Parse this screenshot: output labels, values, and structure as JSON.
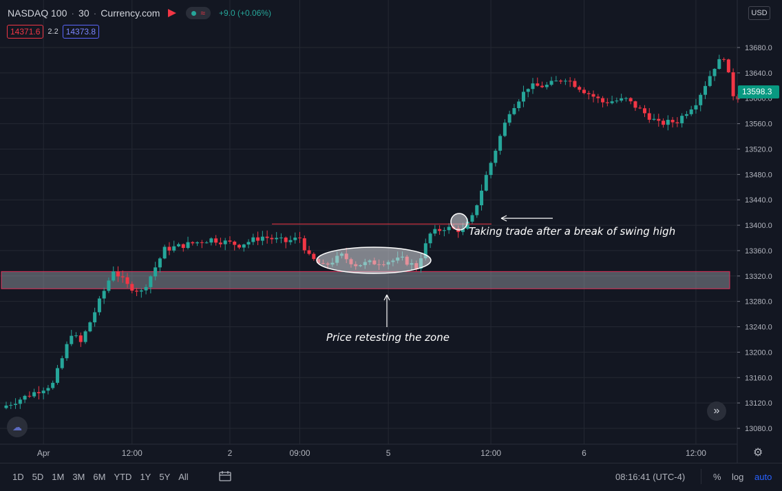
{
  "legend": {
    "symbol": "NASDAQ 100",
    "interval": "30",
    "source": "Currency.com",
    "change": "+9.0 (+0.06%)"
  },
  "ohlc": {
    "bid": "14371.6",
    "spread": "2.2",
    "ask": "14373.8"
  },
  "currency": "USD",
  "last_price_label": "13598.3",
  "colors": {
    "up": "#26a69a",
    "down": "#f23645",
    "background": "#131722",
    "grid": "#242833",
    "zone": "#a0a4ae",
    "zone_border": "#e0315a",
    "accent": "#2962ff"
  },
  "icons": {
    "logo": "cloud-logo-icon",
    "goto": "scroll-to-realtime-icon",
    "settings": "gear-icon",
    "calendar": "date-range-icon"
  },
  "toolbar": {
    "ranges": [
      "1D",
      "5D",
      "1M",
      "3M",
      "6M",
      "YTD",
      "1Y",
      "5Y",
      "All"
    ],
    "time": "08:16:41 (UTC-4)",
    "percent": "%",
    "log": "log",
    "auto": "auto"
  },
  "chart_data": {
    "type": "candlestick",
    "title": "",
    "ylim": [
      13060,
      13700
    ],
    "y_ticks": [
      13080,
      13120,
      13160,
      13200,
      13240,
      13280,
      13320,
      13360,
      13400,
      13440,
      13480,
      13520,
      13560,
      13600,
      13640,
      13680
    ],
    "y_tick_labels": [
      "13080.0",
      "13120.0",
      "13160.0",
      "13200.0",
      "13240.0",
      "13280.0",
      "13320.0",
      "13360.0",
      "13400.0",
      "13440.0",
      "13480.0",
      "13520.0",
      "13560.0",
      "13600.0",
      "13640.0",
      "13680.0"
    ],
    "x_tick_labels": [
      "Apr",
      "12:00",
      "2",
      "09:00",
      "5",
      "12:00",
      "6",
      "12:00"
    ],
    "x_tick_candle_index": [
      8,
      27,
      48,
      63,
      82,
      104,
      124,
      148
    ],
    "candle_count": 158,
    "grid": true,
    "last_price": 13598.3,
    "zone": {
      "y_low": 13300,
      "y_high": 13327
    },
    "swing_high_line": {
      "y": 13402
    },
    "annotations": [
      {
        "text": "Taking trade after a break of swing high"
      },
      {
        "text": "Price retesting the zone"
      }
    ],
    "waypoints": [
      [
        0,
        13116
      ],
      [
        10,
        13150
      ],
      [
        14,
        13230
      ],
      [
        16,
        13215
      ],
      [
        20,
        13280
      ],
      [
        23,
        13330
      ],
      [
        26,
        13305
      ],
      [
        29,
        13295
      ],
      [
        31,
        13320
      ],
      [
        34,
        13362
      ],
      [
        44,
        13378
      ],
      [
        50,
        13369
      ],
      [
        55,
        13382
      ],
      [
        60,
        13374
      ],
      [
        63,
        13380
      ],
      [
        65,
        13350
      ],
      [
        68,
        13335
      ],
      [
        72,
        13352
      ],
      [
        75,
        13338
      ],
      [
        80,
        13342
      ],
      [
        85,
        13346
      ],
      [
        88,
        13334
      ],
      [
        91,
        13386
      ],
      [
        94,
        13396
      ],
      [
        98,
        13392
      ],
      [
        100,
        13412
      ],
      [
        103,
        13478
      ],
      [
        106,
        13540
      ],
      [
        108,
        13580
      ],
      [
        112,
        13618
      ],
      [
        116,
        13620
      ],
      [
        120,
        13632
      ],
      [
        124,
        13612
      ],
      [
        128,
        13594
      ],
      [
        133,
        13598
      ],
      [
        136,
        13582
      ],
      [
        140,
        13560
      ],
      [
        144,
        13564
      ],
      [
        148,
        13594
      ],
      [
        152,
        13650
      ],
      [
        154,
        13666
      ],
      [
        156,
        13606
      ],
      [
        157,
        13598.3
      ]
    ]
  }
}
